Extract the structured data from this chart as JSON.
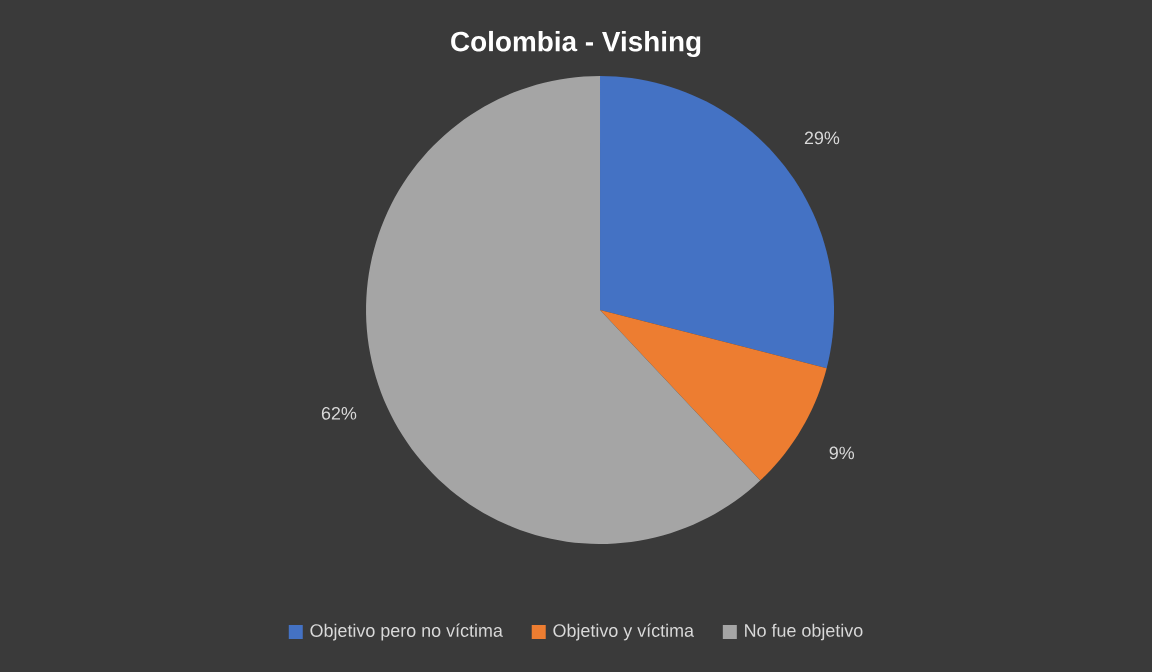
{
  "chart_data": {
    "type": "pie",
    "title": "Colombia  - Vishing",
    "categories": [
      "Objetivo pero no víctima",
      "Objetivo y víctima",
      "No fue objetivo"
    ],
    "values": [
      29,
      9,
      62
    ],
    "value_labels": [
      "29%",
      "9%",
      "62%"
    ],
    "colors": [
      "#4472c4",
      "#ed7d31",
      "#a5a5a5"
    ],
    "legend": "bottom"
  }
}
